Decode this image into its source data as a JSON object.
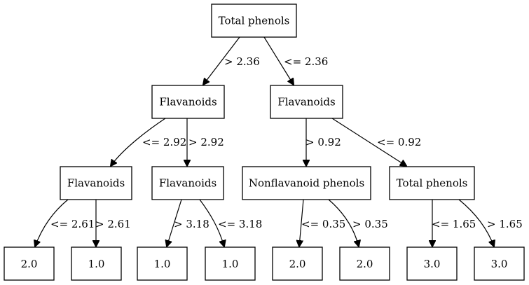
{
  "tree": {
    "nodes": [
      {
        "id": "root",
        "label": "Total phenols"
      },
      {
        "id": "l1a",
        "label": "Flavanoids"
      },
      {
        "id": "l1b",
        "label": "Flavanoids"
      },
      {
        "id": "l2a",
        "label": "Flavanoids"
      },
      {
        "id": "l2b",
        "label": "Flavanoids"
      },
      {
        "id": "l2c",
        "label": "Nonflavanoid phenols"
      },
      {
        "id": "l2d",
        "label": "Total phenols"
      },
      {
        "id": "leaf1",
        "label": "2.0"
      },
      {
        "id": "leaf2",
        "label": "1.0"
      },
      {
        "id": "leaf3",
        "label": "1.0"
      },
      {
        "id": "leaf4",
        "label": "1.0"
      },
      {
        "id": "leaf5",
        "label": "2.0"
      },
      {
        "id": "leaf6",
        "label": "2.0"
      },
      {
        "id": "leaf7",
        "label": "3.0"
      },
      {
        "id": "leaf8",
        "label": "3.0"
      }
    ],
    "edges": [
      {
        "from": "root",
        "to": "l1a",
        "label": "> 2.36"
      },
      {
        "from": "root",
        "to": "l1b",
        "label": "<= 2.36"
      },
      {
        "from": "l1a",
        "to": "l2a",
        "label": "<= 2.92"
      },
      {
        "from": "l1a",
        "to": "l2b",
        "label": "> 2.92"
      },
      {
        "from": "l1b",
        "to": "l2c",
        "label": "> 0.92"
      },
      {
        "from": "l1b",
        "to": "l2d",
        "label": "<= 0.92"
      },
      {
        "from": "l2a",
        "to": "leaf1",
        "label": "<= 2.61"
      },
      {
        "from": "l2a",
        "to": "leaf2",
        "label": "> 2.61"
      },
      {
        "from": "l2b",
        "to": "leaf3",
        "label": "> 3.18"
      },
      {
        "from": "l2b",
        "to": "leaf4",
        "label": "<= 3.18"
      },
      {
        "from": "l2c",
        "to": "leaf5",
        "label": "<= 0.35"
      },
      {
        "from": "l2c",
        "to": "leaf6",
        "label": "> 0.35"
      },
      {
        "from": "l2d",
        "to": "leaf7",
        "label": "<= 1.65"
      },
      {
        "from": "l2d",
        "to": "leaf8",
        "label": "> 1.65"
      }
    ]
  }
}
